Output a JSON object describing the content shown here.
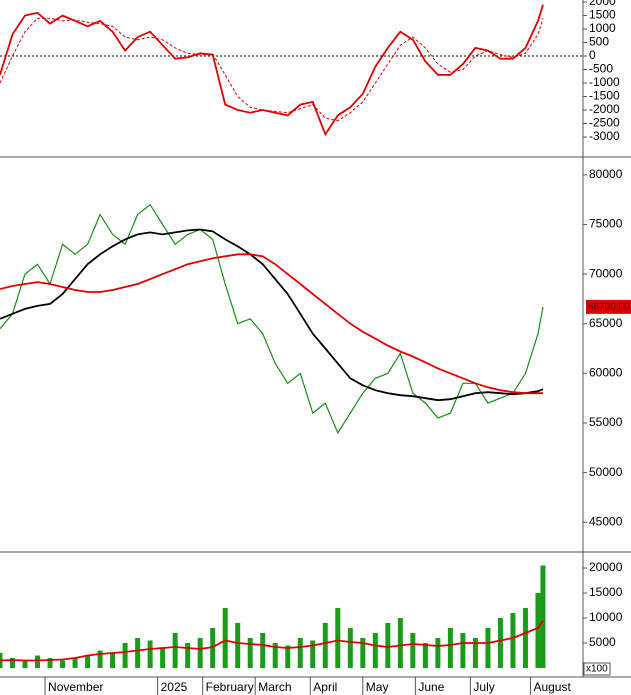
{
  "chart_data": [
    {
      "type": "line",
      "x": [
        0,
        5,
        10,
        15,
        20,
        25,
        30,
        35,
        40,
        45,
        50,
        55,
        60,
        65,
        70,
        75,
        80,
        85,
        90,
        95,
        100,
        105,
        110,
        115,
        120,
        125,
        130,
        135,
        140,
        145,
        150,
        155,
        160,
        165,
        170,
        175,
        180,
        185,
        190,
        195,
        200,
        205,
        210,
        215,
        217
      ],
      "xlim": [
        0,
        233
      ],
      "ylim": [
        -3740,
        2075
      ],
      "yticks": [
        2000,
        1500,
        1000,
        500,
        0,
        -500,
        -1000,
        -1500,
        -2000,
        -2500,
        -3000
      ],
      "reference_line": 0,
      "series": [
        {
          "type": "line",
          "color": "#e00000",
          "values": [
            -700,
            800,
            1500,
            1600,
            1200,
            1500,
            1300,
            1100,
            1300,
            900,
            200,
            700,
            900,
            400,
            -100,
            -50,
            100,
            50,
            -1800,
            -2000,
            -2100,
            -2000,
            -2100,
            -2200,
            -1800,
            -1700,
            -2900,
            -2200,
            -1900,
            -1400,
            -400,
            300,
            900,
            600,
            -200,
            -700,
            -700,
            -300,
            300,
            200,
            -100,
            -100,
            300,
            1300,
            1900
          ]
        },
        {
          "type": "line",
          "color": "#e00000",
          "dash": true,
          "values": [
            -1000,
            0,
            900,
            1400,
            1400,
            1300,
            1350,
            1250,
            1200,
            1100,
            700,
            600,
            700,
            600,
            300,
            100,
            50,
            80,
            -700,
            -1500,
            -1900,
            -2000,
            -2050,
            -2100,
            -1950,
            -1800,
            -2300,
            -2400,
            -2100,
            -1700,
            -1000,
            -300,
            400,
            700,
            300,
            -300,
            -600,
            -500,
            0,
            200,
            50,
            -50,
            100,
            800,
            1400
          ]
        }
      ]
    },
    {
      "type": "line",
      "x": [
        0,
        5,
        10,
        15,
        20,
        25,
        30,
        35,
        40,
        45,
        50,
        55,
        60,
        65,
        70,
        75,
        80,
        85,
        90,
        95,
        100,
        105,
        110,
        115,
        120,
        125,
        130,
        135,
        140,
        145,
        150,
        155,
        160,
        165,
        170,
        175,
        180,
        185,
        190,
        195,
        200,
        205,
        210,
        215,
        217
      ],
      "xlim": [
        0,
        233
      ],
      "ylim": [
        42000,
        81700
      ],
      "yticks": [
        80000,
        75000,
        70000,
        65000,
        60000,
        55000,
        50000,
        45000
      ],
      "last_price": {
        "value": 66700,
        "label": "66700.00"
      },
      "series": [
        {
          "type": "line",
          "color": "#1a8c1a",
          "values": [
            64500,
            66000,
            70000,
            71000,
            69000,
            73000,
            72000,
            73000,
            76000,
            74000,
            73000,
            76000,
            77000,
            75000,
            73000,
            74000,
            74500,
            73500,
            69000,
            65000,
            65500,
            64000,
            61000,
            59000,
            60000,
            56000,
            57000,
            54000,
            56000,
            58000,
            59500,
            60000,
            62000,
            58000,
            57000,
            55500,
            56000,
            59000,
            59000,
            57000,
            57500,
            58000,
            60000,
            64000,
            66700
          ]
        },
        {
          "type": "line",
          "color": "#000000",
          "values": [
            65500,
            66000,
            66500,
            66800,
            67000,
            68000,
            69500,
            71000,
            72000,
            72800,
            73500,
            74000,
            74200,
            74000,
            74200,
            74400,
            74500,
            74300,
            73500,
            72800,
            72000,
            71000,
            69500,
            68000,
            66000,
            64000,
            62500,
            61000,
            59500,
            58800,
            58300,
            58000,
            57800,
            57700,
            57500,
            57300,
            57400,
            57700,
            58000,
            58100,
            58000,
            57900,
            58000,
            58200,
            58400
          ]
        },
        {
          "type": "line",
          "color": "#e00000",
          "values": [
            68500,
            68800,
            69000,
            69200,
            69000,
            68700,
            68400,
            68200,
            68200,
            68400,
            68700,
            69000,
            69500,
            70000,
            70500,
            71000,
            71300,
            71600,
            71800,
            72000,
            72000,
            71800,
            71000,
            70000,
            69000,
            68000,
            67000,
            66000,
            65000,
            64200,
            63500,
            62800,
            62200,
            61700,
            61100,
            60500,
            60000,
            59500,
            59000,
            58600,
            58300,
            58100,
            58000,
            58000,
            58000
          ]
        }
      ]
    },
    {
      "type": "bar",
      "x": [
        0,
        5,
        10,
        15,
        20,
        25,
        30,
        35,
        40,
        45,
        50,
        55,
        60,
        65,
        70,
        75,
        80,
        85,
        90,
        95,
        100,
        105,
        110,
        115,
        120,
        125,
        130,
        135,
        140,
        145,
        150,
        155,
        160,
        165,
        170,
        175,
        180,
        185,
        190,
        195,
        200,
        205,
        210,
        215,
        217
      ],
      "xlim": [
        0,
        233
      ],
      "ylim": [
        0,
        22600
      ],
      "yticks": [
        20000,
        15000,
        10000,
        5000,
        0
      ],
      "unit_label": "x100",
      "xticks": [
        {
          "value": 18,
          "label": "November"
        },
        {
          "value": 63,
          "label": "2025"
        },
        {
          "value": 81,
          "label": "February"
        },
        {
          "value": 102,
          "label": "March"
        },
        {
          "value": 124,
          "label": "April"
        },
        {
          "value": 145,
          "label": "May"
        },
        {
          "value": 166,
          "label": "June"
        },
        {
          "value": 188,
          "label": "July"
        },
        {
          "value": 212,
          "label": "August"
        }
      ],
      "series": [
        {
          "type": "bar",
          "color": "#1a9c1a",
          "values": [
            3000,
            2000,
            1500,
            2500,
            2000,
            1500,
            2000,
            2500,
            3500,
            3000,
            5000,
            6000,
            5500,
            4000,
            7000,
            5000,
            6000,
            8000,
            12000,
            9000,
            6000,
            7000,
            5000,
            4500,
            6000,
            5500,
            9000,
            12000,
            8000,
            6000,
            7000,
            9000,
            10000,
            7000,
            5000,
            6000,
            8000,
            7000,
            6000,
            8000,
            10000,
            11000,
            12000,
            15000,
            20500
          ]
        },
        {
          "type": "line",
          "color": "#e00000",
          "values": [
            1500,
            1600,
            1500,
            1500,
            1600,
            1700,
            2000,
            2500,
            2800,
            3000,
            3200,
            3500,
            3800,
            4000,
            4200,
            4000,
            3800,
            4200,
            5500,
            5000,
            4800,
            4600,
            4200,
            4000,
            4200,
            4500,
            5000,
            5500,
            5200,
            5000,
            4500,
            4200,
            4500,
            4800,
            4600,
            4400,
            4600,
            5000,
            5000,
            5000,
            5500,
            6000,
            7000,
            8000,
            9500
          ]
        }
      ]
    }
  ]
}
